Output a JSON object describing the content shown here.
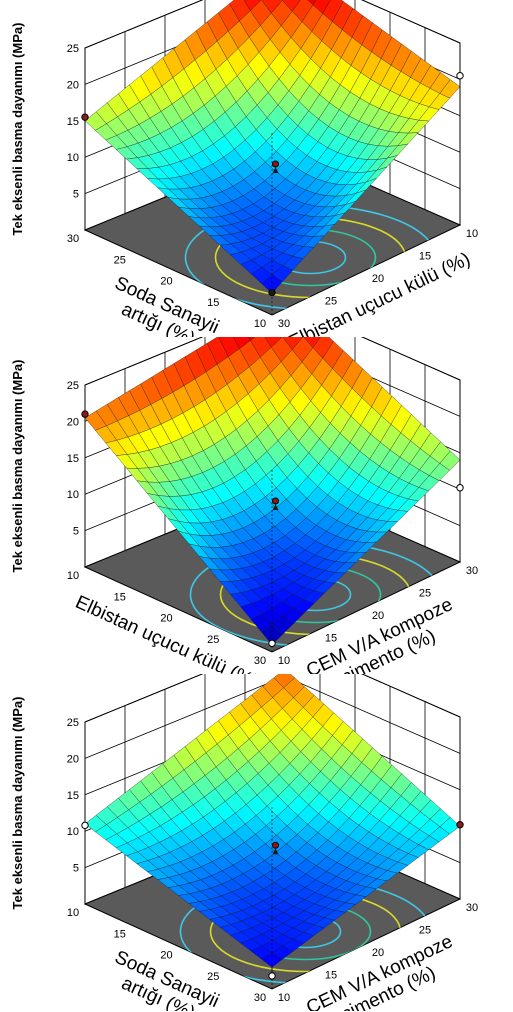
{
  "chart_data": [
    {
      "type": "surface",
      "ylabel": "Tek eksenli basma dayanımı (MPa)",
      "zlim": [
        0,
        25
      ],
      "z_ticks": [
        "5",
        "10",
        "15",
        "20",
        "25"
      ],
      "front_axis": {
        "label": [
          "Soda Sanayii",
          "artığı (%)"
        ],
        "ticks": [
          "30",
          "25",
          "20",
          "15",
          "10"
        ]
      },
      "right_axis": {
        "label": [
          "Elbistan uçucu külü (%)"
        ],
        "ticks": [
          "30",
          "25",
          "20",
          "15",
          "10"
        ]
      },
      "corner_values": {
        "back_left": 26,
        "front_left": 15,
        "front_bottom": 3,
        "front_right": 19,
        "back_right": 23
      },
      "center_value": 8,
      "markers": [
        {
          "corner": "front_left",
          "value": 15.5,
          "color": "#8b1a1a"
        },
        {
          "corner": "front_bottom",
          "value": 3.1,
          "color": "#1a1a1a"
        },
        {
          "corner": "front_right",
          "value": 20.5,
          "color": "#ffffff"
        }
      ],
      "center_marker_value": 9
    },
    {
      "type": "surface",
      "ylabel": "Tek eksenli basma dayanımı (MPa)",
      "zlim": [
        0,
        25
      ],
      "z_ticks": [
        "5",
        "10",
        "15",
        "20",
        "25"
      ],
      "front_axis": {
        "label": [
          "Elbistan uçucu külü (%)"
        ],
        "ticks": [
          "10",
          "15",
          "20",
          "25",
          "30"
        ]
      },
      "right_axis": {
        "label": [
          "CEM V/A kompoze",
          "çimento (%)"
        ],
        "ticks": [
          "10",
          "15",
          "20",
          "25",
          "30"
        ]
      },
      "corner_values": {
        "back_left": 26,
        "front_left": 20.5,
        "front_bottom": 1,
        "front_right": 14,
        "back_right": 15
      },
      "center_value": 8,
      "markers": [
        {
          "corner": "back_left",
          "value": 26.5,
          "color": "#8b1a1a"
        },
        {
          "corner": "front_left",
          "value": 21,
          "color": "#8b1a1a"
        },
        {
          "corner": "front_bottom",
          "value": 1.2,
          "color": "#ffffff"
        },
        {
          "corner": "front_right",
          "value": 10.2,
          "color": "#ffffff"
        }
      ],
      "center_marker_value": 9
    },
    {
      "type": "surface",
      "ylabel": "Tek eksenli basma dayanımı (MPa)",
      "zlim": [
        0,
        25
      ],
      "z_ticks": [
        "5",
        "10",
        "15",
        "20",
        "25"
      ],
      "front_axis": {
        "label": [
          "Soda Sanayii",
          "artığı (%)"
        ],
        "ticks": [
          "10",
          "15",
          "20",
          "25",
          "30"
        ]
      },
      "right_axis": {
        "label": [
          "CEM V/A kompoze",
          "çimento (%)"
        ],
        "ticks": [
          "10",
          "15",
          "20",
          "25",
          "30"
        ]
      },
      "corner_values": {
        "back_left": 21,
        "front_left": 11,
        "front_bottom": 3,
        "front_right": 10,
        "back_right": 11
      },
      "center_value": 7,
      "markers": [
        {
          "corner": "back_left",
          "value": 22,
          "color": "#8b1a1a"
        },
        {
          "corner": "front_left",
          "value": 10.8,
          "color": "#ffffff"
        },
        {
          "corner": "front_bottom",
          "value": 1.8,
          "color": "#ffffff"
        },
        {
          "corner": "front_right",
          "value": 10.2,
          "color": "#8b1a1a"
        }
      ],
      "center_marker_value": 8
    }
  ]
}
